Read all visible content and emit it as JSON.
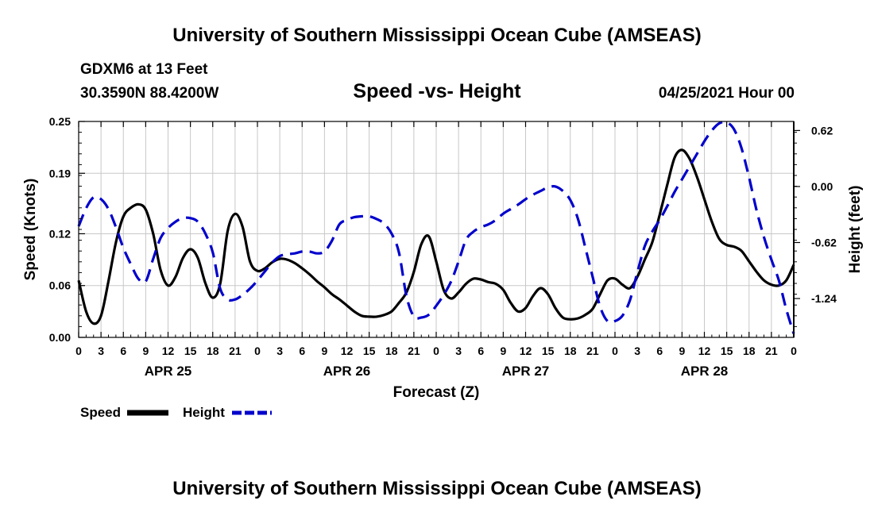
{
  "header": {
    "top_title": "University of Southern Mississippi Ocean Cube (AMSEAS)",
    "bottom_title": "University of Southern Mississippi Ocean Cube (AMSEAS)",
    "station": "GDXM6 at 13 Feet",
    "location": "30.3590N  88.4200W",
    "datetime": "04/25/2021 Hour 00"
  },
  "legend": {
    "speed": "Speed",
    "height": "Height"
  },
  "colors": {
    "speed": "#000000",
    "height": "#0000cc"
  },
  "chart_data": {
    "type": "line",
    "title": "Speed -vs- Height",
    "xlabel": "Forecast (Z)",
    "ylabel": "Speed (Knots)",
    "y2label": "Height (feet)",
    "xlim": [
      0,
      96
    ],
    "ylim": [
      0,
      0.25
    ],
    "y2lim": [
      -1.67,
      0.72
    ],
    "x_ticks": [
      0,
      3,
      6,
      9,
      12,
      15,
      18,
      21,
      24,
      27,
      30,
      33,
      36,
      39,
      42,
      45,
      48,
      51,
      54,
      57,
      60,
      63,
      66,
      69,
      72,
      75,
      78,
      81,
      84,
      87,
      90,
      93,
      96
    ],
    "x_tick_labels": [
      "0",
      "3",
      "6",
      "9",
      "12",
      "15",
      "18",
      "21",
      "0",
      "3",
      "6",
      "9",
      "12",
      "15",
      "18",
      "21",
      "0",
      "3",
      "6",
      "9",
      "12",
      "15",
      "18",
      "21",
      "0",
      "3",
      "6",
      "9",
      "12",
      "15",
      "18",
      "21",
      "0"
    ],
    "date_labels": [
      {
        "label": "APR 25",
        "x": 12
      },
      {
        "label": "APR 26",
        "x": 36
      },
      {
        "label": "APR 27",
        "x": 60
      },
      {
        "label": "APR 28",
        "x": 84
      }
    ],
    "y_ticks": [
      0.0,
      0.06,
      0.12,
      0.19,
      0.25
    ],
    "y_tick_labels": [
      "0.00",
      "0.06",
      "0.12",
      "0.19",
      "0.25"
    ],
    "y2_ticks": [
      0.62,
      0.0,
      -0.62,
      -1.24
    ],
    "y2_tick_labels": [
      "0.62",
      "0.00",
      "-0.62",
      "-1.24"
    ],
    "series": [
      {
        "name": "Speed",
        "axis": "left",
        "style": "solid",
        "x": [
          0,
          1,
          2,
          3,
          4,
          5,
          6,
          7,
          8,
          9,
          10,
          11,
          12,
          13,
          14,
          15,
          16,
          17,
          18,
          19,
          20,
          21,
          22,
          23,
          24,
          25,
          26,
          27,
          28,
          29,
          30,
          31,
          32,
          33,
          34,
          35,
          36,
          37,
          38,
          39,
          40,
          41,
          42,
          43,
          44,
          45,
          46,
          47,
          48,
          49,
          50,
          51,
          52,
          53,
          54,
          55,
          56,
          57,
          58,
          59,
          60,
          61,
          62,
          63,
          64,
          65,
          66,
          67,
          68,
          69,
          70,
          71,
          72,
          73,
          74,
          75,
          76,
          77,
          78,
          79,
          80,
          81,
          82,
          83,
          84,
          85,
          86,
          87,
          88,
          89,
          90,
          91,
          92,
          93,
          94,
          95,
          96
        ],
        "values": [
          0.066,
          0.03,
          0.016,
          0.025,
          0.065,
          0.11,
          0.14,
          0.15,
          0.154,
          0.148,
          0.12,
          0.078,
          0.06,
          0.07,
          0.092,
          0.102,
          0.092,
          0.063,
          0.046,
          0.062,
          0.123,
          0.143,
          0.128,
          0.088,
          0.077,
          0.08,
          0.087,
          0.091,
          0.09,
          0.086,
          0.08,
          0.073,
          0.065,
          0.058,
          0.05,
          0.044,
          0.037,
          0.03,
          0.025,
          0.024,
          0.024,
          0.026,
          0.03,
          0.04,
          0.052,
          0.076,
          0.108,
          0.117,
          0.088,
          0.055,
          0.045,
          0.052,
          0.062,
          0.068,
          0.067,
          0.064,
          0.062,
          0.055,
          0.04,
          0.03,
          0.034,
          0.048,
          0.057,
          0.05,
          0.034,
          0.023,
          0.021,
          0.022,
          0.026,
          0.033,
          0.05,
          0.066,
          0.068,
          0.061,
          0.057,
          0.07,
          0.09,
          0.11,
          0.142,
          0.176,
          0.208,
          0.217,
          0.207,
          0.186,
          0.16,
          0.134,
          0.114,
          0.107,
          0.105,
          0.1,
          0.088,
          0.076,
          0.066,
          0.061,
          0.06,
          0.066,
          0.084
        ]
      },
      {
        "name": "Height",
        "axis": "right",
        "style": "dashed",
        "x": [
          0,
          1,
          2,
          3,
          4,
          5,
          6,
          7,
          8,
          9,
          10,
          11,
          12,
          13,
          14,
          15,
          16,
          17,
          18,
          19,
          20,
          21,
          22,
          23,
          24,
          25,
          26,
          27,
          28,
          29,
          30,
          31,
          32,
          33,
          34,
          35,
          36,
          37,
          38,
          39,
          40,
          41,
          42,
          43,
          44,
          45,
          46,
          47,
          48,
          49,
          50,
          51,
          52,
          53,
          54,
          55,
          56,
          57,
          58,
          59,
          60,
          61,
          62,
          63,
          64,
          65,
          66,
          67,
          68,
          69,
          70,
          71,
          72,
          73,
          74,
          75,
          76,
          77,
          78,
          79,
          80,
          81,
          82,
          83,
          84,
          85,
          86,
          87,
          88,
          89,
          90,
          91,
          92,
          93,
          94,
          95,
          96
        ],
        "values": [
          -0.44,
          -0.24,
          -0.12,
          -0.14,
          -0.25,
          -0.45,
          -0.68,
          -0.86,
          -1.02,
          -1.05,
          -0.8,
          -0.57,
          -0.46,
          -0.39,
          -0.35,
          -0.35,
          -0.39,
          -0.52,
          -0.73,
          -1.13,
          -1.25,
          -1.25,
          -1.2,
          -1.13,
          -1.04,
          -0.94,
          -0.84,
          -0.77,
          -0.75,
          -0.74,
          -0.72,
          -0.72,
          -0.74,
          -0.72,
          -0.6,
          -0.42,
          -0.37,
          -0.34,
          -0.33,
          -0.33,
          -0.36,
          -0.41,
          -0.52,
          -0.73,
          -1.21,
          -1.44,
          -1.45,
          -1.42,
          -1.32,
          -1.2,
          -1.05,
          -0.83,
          -0.59,
          -0.5,
          -0.45,
          -0.42,
          -0.37,
          -0.3,
          -0.25,
          -0.2,
          -0.14,
          -0.09,
          -0.05,
          -0.01,
          -0.0,
          -0.05,
          -0.15,
          -0.35,
          -0.67,
          -1.0,
          -1.33,
          -1.49,
          -1.49,
          -1.43,
          -1.26,
          -0.95,
          -0.66,
          -0.5,
          -0.37,
          -0.22,
          -0.06,
          0.08,
          0.22,
          0.36,
          0.5,
          0.62,
          0.7,
          0.71,
          0.63,
          0.42,
          0.1,
          -0.26,
          -0.56,
          -0.81,
          -1.04,
          -1.36,
          -1.63
        ]
      }
    ]
  }
}
